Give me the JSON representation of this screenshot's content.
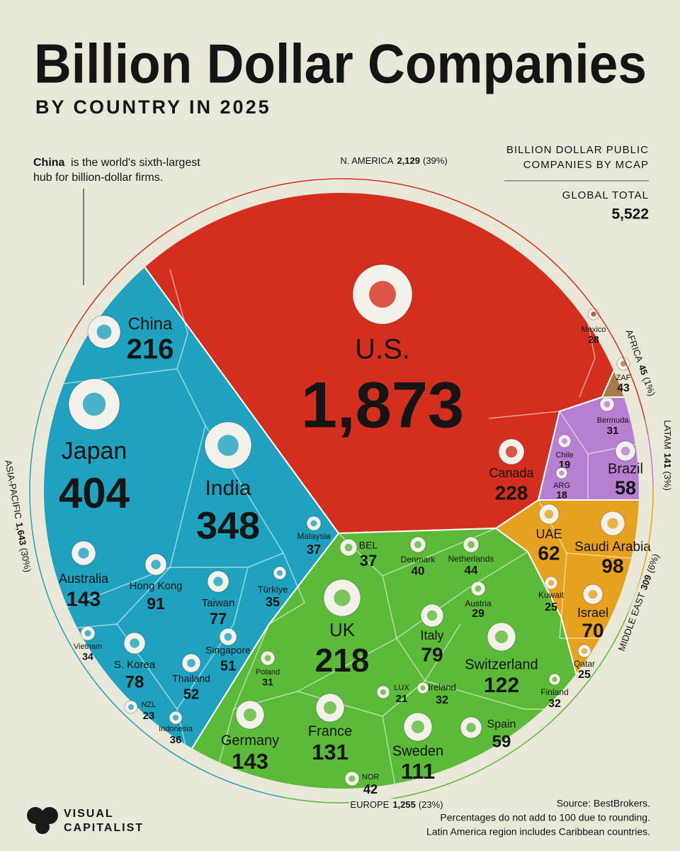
{
  "chart_data": {
    "type": "voronoi-treemap",
    "title": "Billion Dollar Companies",
    "subtitle": "BY COUNTRY IN 2025",
    "annotation": {
      "highlight": "China",
      "lines": [
        "is the world's sixth-largest",
        "hub for billion-dollar firms."
      ]
    },
    "legend_title": [
      "BILLION DOLLAR PUBLIC",
      "COMPANIES BY MCAP"
    ],
    "total_label": "GLOBAL TOTAL",
    "total": 5522,
    "total_value_label": "5,522",
    "regions": [
      {
        "name": "N. AMERICA",
        "value": 2129,
        "value_label": "2,129",
        "percent_label": "(39%)",
        "color": "#d42f1e",
        "countries": [
          {
            "name": "U.S.",
            "value": 1873,
            "value_label": "1,873"
          },
          {
            "name": "Canada",
            "value": 228
          },
          {
            "name": "Mexico",
            "value": 28
          }
        ]
      },
      {
        "name": "AFRICA",
        "value": 45,
        "percent_label": "(1%)",
        "color": "#a77b47",
        "countries": [
          {
            "name": "ZAF",
            "value": 43
          }
        ]
      },
      {
        "name": "LATAM",
        "value": 141,
        "percent_label": "(3%)",
        "color": "#b67fd2",
        "countries": [
          {
            "name": "Bermuda",
            "value": 31
          },
          {
            "name": "Chile",
            "value": 19
          },
          {
            "name": "ARG",
            "value": 18
          },
          {
            "name": "Brazil",
            "value": 58
          }
        ]
      },
      {
        "name": "MIDDLE EAST",
        "value": 309,
        "percent_label": "(6%)",
        "color": "#e6a21e",
        "countries": [
          {
            "name": "UAE",
            "value": 62
          },
          {
            "name": "Saudi Arabia",
            "value": 98
          },
          {
            "name": "Kuwait",
            "value": 25
          },
          {
            "name": "Israel",
            "value": 70
          },
          {
            "name": "Qatar",
            "value": 25
          }
        ]
      },
      {
        "name": "EUROPE",
        "value": 1255,
        "value_label": "1,255",
        "percent_label": "(23%)",
        "color": "#5bba38",
        "countries": [
          {
            "name": "BEL",
            "value": 37
          },
          {
            "name": "Denmark",
            "value": 40
          },
          {
            "name": "Netherlands",
            "value": 44
          },
          {
            "name": "Austria",
            "value": 29
          },
          {
            "name": "UK",
            "value": 218
          },
          {
            "name": "Italy",
            "value": 79
          },
          {
            "name": "Switzerland",
            "value": 122
          },
          {
            "name": "Poland",
            "value": 31
          },
          {
            "name": "LUX",
            "value": 21
          },
          {
            "name": "Ireland",
            "value": 32
          },
          {
            "name": "Finland",
            "value": 32
          },
          {
            "name": "Germany",
            "value": 143
          },
          {
            "name": "France",
            "value": 131
          },
          {
            "name": "Sweden",
            "value": 111
          },
          {
            "name": "Spain",
            "value": 59
          },
          {
            "name": "NOR",
            "value": 42
          }
        ]
      },
      {
        "name": "ASIA-PACIFIC",
        "value": 1643,
        "value_label": "1,643",
        "percent_label": "(30%)",
        "color": "#1fa2bf",
        "countries": [
          {
            "name": "China",
            "value": 216
          },
          {
            "name": "Japan",
            "value": 404
          },
          {
            "name": "India",
            "value": 348
          },
          {
            "name": "Malaysia",
            "value": 37
          },
          {
            "name": "Australia",
            "value": 143
          },
          {
            "name": "Hong Kong",
            "value": 91
          },
          {
            "name": "Taiwan",
            "value": 77
          },
          {
            "name": "Türkiye",
            "value": 35
          },
          {
            "name": "Vietnam",
            "value": 34
          },
          {
            "name": "S. Korea",
            "value": 78
          },
          {
            "name": "Thailand",
            "value": 52
          },
          {
            "name": "Singapore",
            "value": 51
          },
          {
            "name": "NZL",
            "value": 23
          },
          {
            "name": "Indonesia",
            "value": 36
          }
        ]
      }
    ],
    "source": [
      "Source: BestBrokers.",
      "Percentages do not add to 100 due to rounding.",
      "Latin America region includes Caribbean countries."
    ],
    "brand": [
      "VISUAL",
      "CAPITALIST"
    ]
  }
}
